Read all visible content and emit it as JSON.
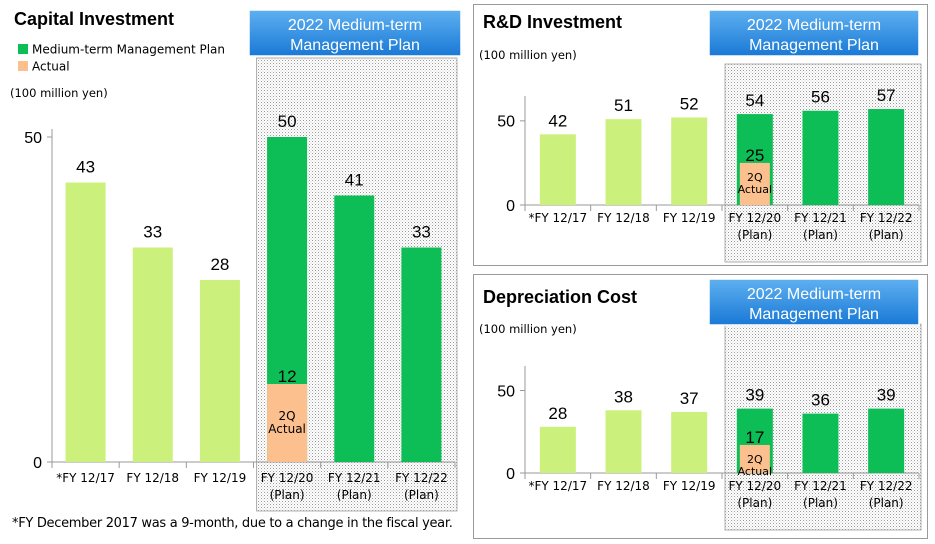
{
  "colors": {
    "plan": "#0dbd55",
    "actual": "#fbc08e",
    "past": "#ccf07c",
    "banner_top": "#5fb0f0",
    "banner_bottom": "#1979d6"
  },
  "legend": {
    "plan_label": "Medium-term Management Plan",
    "actual_label": "Actual"
  },
  "footnote": "*FY December 2017 was a 9-month, due to a change in the fiscal year.",
  "chart_data": [
    {
      "id": "capital",
      "type": "bar",
      "title": "Capital Investment",
      "banner": [
        "2022 Medium-term",
        "Management Plan"
      ],
      "unit": "(100 million yen)",
      "ylim": [
        0,
        50
      ],
      "yticks": [
        0,
        50
      ],
      "categories": [
        [
          "*FY 12/17"
        ],
        [
          "FY 12/18"
        ],
        [
          "FY 12/19"
        ],
        [
          "FY 12/20",
          "(Plan)"
        ],
        [
          "FY 12/21",
          "(Plan)"
        ],
        [
          "FY 12/22",
          "(Plan)"
        ]
      ],
      "series": [
        {
          "name": "Medium-term Management Plan",
          "values": [
            43,
            33,
            28,
            50,
            41,
            33
          ]
        }
      ],
      "bar_kinds": [
        "past",
        "past",
        "past",
        "plan",
        "plan",
        "plan"
      ],
      "actual": {
        "category_index": 3,
        "value": 12,
        "label": [
          "2Q",
          "Actual"
        ]
      }
    },
    {
      "id": "rnd",
      "type": "bar",
      "title": "R&D Investment",
      "banner": [
        "2022 Medium-term",
        "Management Plan"
      ],
      "unit": "(100 million yen)",
      "ylim": [
        0,
        60
      ],
      "yticks": [
        0,
        50
      ],
      "categories": [
        [
          "*FY 12/17"
        ],
        [
          "FY 12/18"
        ],
        [
          "FY 12/19"
        ],
        [
          "FY 12/20",
          "(Plan)"
        ],
        [
          "FY 12/21",
          "(Plan)"
        ],
        [
          "FY 12/22",
          "(Plan)"
        ]
      ],
      "series": [
        {
          "name": "Medium-term Management Plan",
          "values": [
            42,
            51,
            52,
            54,
            56,
            57
          ]
        }
      ],
      "bar_kinds": [
        "past",
        "past",
        "past",
        "plan",
        "plan",
        "plan"
      ],
      "actual": {
        "category_index": 3,
        "value": 25,
        "label": [
          "2Q",
          "Actual"
        ]
      }
    },
    {
      "id": "depreciation",
      "type": "bar",
      "title": "Depreciation Cost",
      "banner": [
        "2022 Medium-term",
        "Management Plan"
      ],
      "unit": "(100 million yen)",
      "ylim": [
        0,
        60
      ],
      "yticks": [
        0,
        50
      ],
      "categories": [
        [
          "*FY 12/17"
        ],
        [
          "FY 12/18"
        ],
        [
          "FY 12/19"
        ],
        [
          "FY 12/20",
          "(Plan)"
        ],
        [
          "FY 12/21",
          "(Plan)"
        ],
        [
          "FY 12/22",
          "(Plan)"
        ]
      ],
      "series": [
        {
          "name": "Medium-term Management Plan",
          "values": [
            28,
            38,
            37,
            39,
            36,
            39
          ]
        }
      ],
      "bar_kinds": [
        "past",
        "past",
        "past",
        "plan",
        "plan",
        "plan"
      ],
      "actual": {
        "category_index": 3,
        "value": 17,
        "label": [
          "2Q",
          "Actual"
        ]
      }
    }
  ]
}
